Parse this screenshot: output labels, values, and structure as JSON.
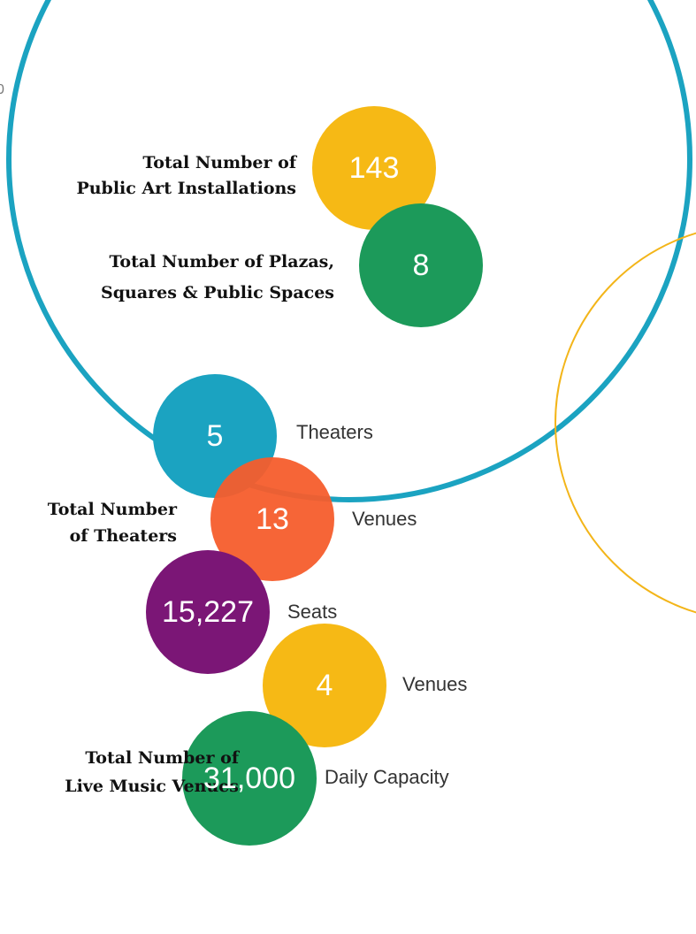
{
  "edge_text": "0",
  "groups": [
    {
      "heading": [
        "Total Number of",
        "Public Art Installations"
      ],
      "items": [
        {
          "value": "143"
        }
      ]
    },
    {
      "heading": [
        "Total Number of Plazas,",
        "Squares & Public Spaces"
      ],
      "items": [
        {
          "value": "8"
        }
      ]
    },
    {
      "heading": [
        "Total Number",
        "of Theaters"
      ],
      "items": [
        {
          "value": "5",
          "caption": "Theaters"
        },
        {
          "value": "13",
          "caption": "Venues"
        },
        {
          "value": "15,227",
          "caption": "Seats"
        }
      ]
    },
    {
      "heading": [
        "Total Number of",
        "Live Music Venues"
      ],
      "items": [
        {
          "value": "4",
          "caption": "Venues"
        },
        {
          "value": "31,000",
          "caption": "Daily Capacity"
        }
      ]
    }
  ]
}
